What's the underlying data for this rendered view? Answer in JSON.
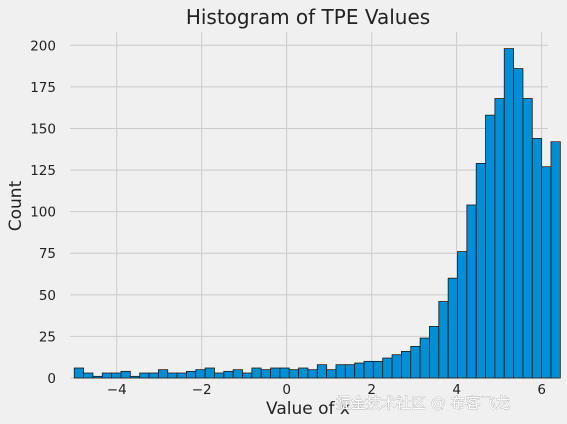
{
  "chart_data": {
    "type": "bar",
    "title": "Histogram of TPE Values",
    "xlabel": "Value of x",
    "ylabel": "Count",
    "xlim": [
      -5.1,
      6.15
    ],
    "ylim": [
      0,
      208
    ],
    "xticks": [
      -4,
      -2,
      0,
      2,
      4,
      6
    ],
    "xtick_labels": [
      "−4",
      "−2",
      "0",
      "2",
      "4",
      "6"
    ],
    "yticks": [
      0,
      25,
      50,
      75,
      100,
      125,
      150,
      175,
      200
    ],
    "bin_start": -5.0,
    "bin_width": 0.22,
    "values": [
      6,
      3,
      1,
      3,
      3,
      4,
      1,
      3,
      3,
      5,
      3,
      3,
      4,
      5,
      6,
      3,
      4,
      5,
      3,
      6,
      5,
      6,
      6,
      5,
      6,
      5,
      8,
      5,
      8,
      8,
      9,
      10,
      10,
      12,
      14,
      16,
      19,
      24,
      31,
      46,
      60,
      76,
      104,
      129,
      158,
      168,
      198,
      186,
      168,
      144,
      127,
      142
    ],
    "grid": true
  },
  "watermark": "掘金技术社区 @ 布客飞龙",
  "colors": {
    "bar": "#008fd5",
    "background": "#f0f0f0",
    "grid": "#cbcbcb"
  }
}
